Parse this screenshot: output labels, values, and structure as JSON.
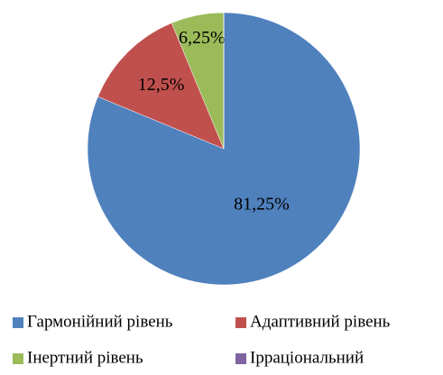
{
  "chart_data": {
    "type": "pie",
    "categories": [
      "Гармонійний рівень",
      "Адаптивний рівень",
      "Інертний рівень",
      "Ірраціональний"
    ],
    "values": [
      81.25,
      12.5,
      6.25,
      0
    ],
    "value_labels": [
      "81,25%",
      "12,5%",
      "6,25%",
      null
    ],
    "colors": [
      "#4f81bd",
      "#c0504d",
      "#9bbb59",
      "#8064a2"
    ],
    "legend": "bottom"
  }
}
